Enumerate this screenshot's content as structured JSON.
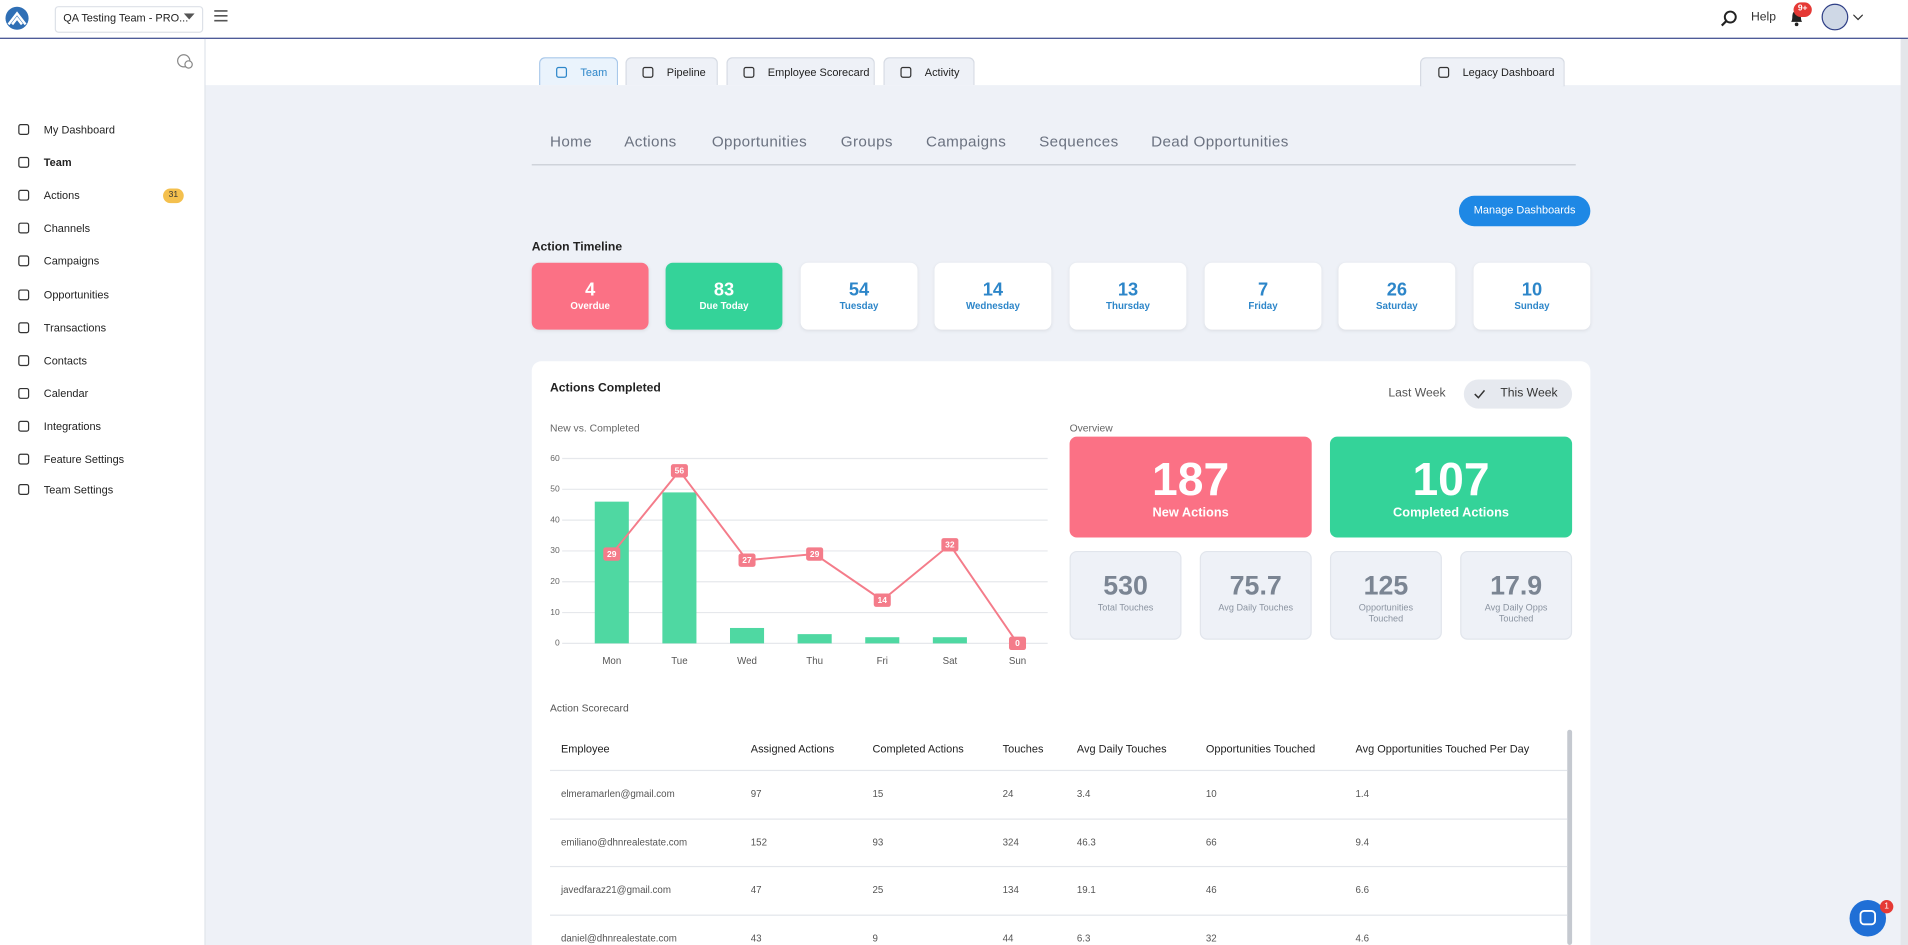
{
  "header": {
    "team": "QA Testing Team - PRO...",
    "help": "Help",
    "notifications": "9+"
  },
  "sidebar": {
    "items": [
      "My Dashboard",
      "Team",
      "Actions",
      "Channels",
      "Campaigns",
      "Opportunities",
      "Transactions",
      "Contacts",
      "Calendar",
      "Integrations",
      "Feature Settings",
      "Team Settings"
    ],
    "actions_badge": 31
  },
  "tabs": [
    "Team",
    "Pipeline",
    "Employee Scorecard",
    "Activity"
  ],
  "legacy_tab": "Legacy Dashboard",
  "subnav": [
    "Home",
    "Actions",
    "Opportunities",
    "Groups",
    "Campaigns",
    "Sequences",
    "Dead Opportunities"
  ],
  "manage_button": "Manage Dashboards",
  "timeline": {
    "title": "Action Timeline",
    "cards": [
      {
        "value": 4,
        "label": "Overdue"
      },
      {
        "value": 83,
        "label": "Due Today"
      },
      {
        "value": 54,
        "label": "Tuesday"
      },
      {
        "value": 14,
        "label": "Wednesday"
      },
      {
        "value": 13,
        "label": "Thursday"
      },
      {
        "value": 7,
        "label": "Friday"
      },
      {
        "value": 26,
        "label": "Saturday"
      },
      {
        "value": 10,
        "label": "Sunday"
      }
    ]
  },
  "actions_completed": {
    "title": "Actions Completed",
    "toggle": [
      "Last Week",
      "This Week"
    ],
    "overview_title": "Overview",
    "overview_main": [
      {
        "value": 187,
        "label": "New Actions",
        "color": "#fb7185"
      },
      {
        "value": 107,
        "label": "Completed Actions",
        "color": "#34d399"
      }
    ],
    "overview_small": [
      {
        "value": 530,
        "label": "Total Touches"
      },
      {
        "value": 75.7,
        "label": "Avg Daily Touches"
      },
      {
        "value": 125,
        "label": "Opportunities Touched"
      },
      {
        "value": 17.9,
        "label": "Avg Daily Opps Touched"
      }
    ]
  },
  "chart_data": {
    "type": "bar",
    "title": "New vs. Completed",
    "categories": [
      "Mon",
      "Tue",
      "Wed",
      "Thu",
      "Fri",
      "Sat",
      "Sun"
    ],
    "series": [
      {
        "type": "bar",
        "color": "#4fd8a2",
        "values": [
          46,
          49,
          5,
          3,
          2,
          2,
          0
        ]
      },
      {
        "type": "line",
        "color": "#f47c8a",
        "values": [
          29,
          56,
          27,
          29,
          14,
          32,
          0
        ]
      }
    ],
    "ylim": [
      0,
      60
    ],
    "yticks": [
      0,
      10,
      20,
      30,
      40,
      50,
      60
    ],
    "grid": true
  },
  "scorecard": {
    "title": "Action Scorecard",
    "columns": [
      "Employee",
      "Assigned Actions",
      "Completed Actions",
      "Touches",
      "Avg Daily Touches",
      "Opportunities Touched",
      "Avg Opportunities Touched Per Day"
    ],
    "rows": [
      [
        "elmeramarlen@gmail.com",
        97,
        15,
        24,
        3.4,
        10,
        1.4
      ],
      [
        "emiliano@dhnrealestate.com",
        152,
        93,
        324,
        46.3,
        66,
        9.4
      ],
      [
        "javedfaraz21@gmail.com",
        47,
        25,
        134,
        19.1,
        46,
        6.6
      ],
      [
        "daniel@dhnrealestate.com",
        43,
        9,
        44,
        6.3,
        32,
        4.6
      ]
    ]
  },
  "chat_badge": 1
}
